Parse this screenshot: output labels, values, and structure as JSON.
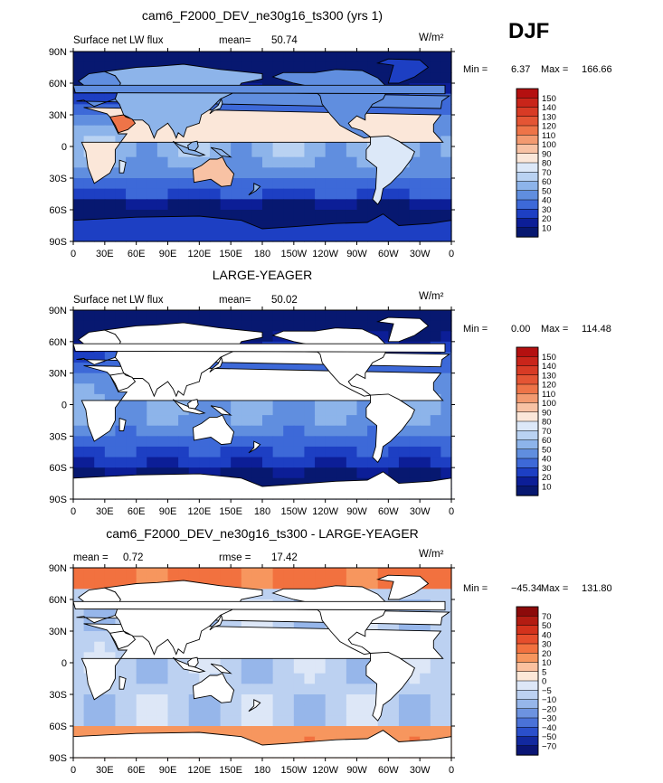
{
  "season": "DJF",
  "chart_data": [
    {
      "type": "heatmap",
      "title": "cam6_F2000_DEV_ne30g16_ts300 (yrs 1)",
      "left_label": "Surface net LW flux",
      "stat_label": "mean=",
      "stat_value": "50.74",
      "units": "W/m²",
      "min_label": "Min =",
      "min_value": "6.37",
      "max_label": "Max =",
      "max_value": "166.66",
      "colorbar_levels": [
        "150",
        "140",
        "130",
        "120",
        "110",
        "100",
        "90",
        "80",
        "70",
        "60",
        "50",
        "40",
        "30",
        "20",
        "10"
      ],
      "colorbar_colors": [
        "#B41010",
        "#C9251A",
        "#D83B25",
        "#E45534",
        "#EE7448",
        "#F39A70",
        "#F8C2A4",
        "#FBE7D9",
        "#DCE8F8",
        "#B9D2F2",
        "#8DB4EA",
        "#608EDF",
        "#3D69D8",
        "#1D3FC3",
        "#0C1E97",
        "#071870"
      ],
      "lat_ticks": [
        "90N",
        "60N",
        "30N",
        "0",
        "30S",
        "60S",
        "90S"
      ],
      "lon_ticks": [
        "0",
        "30E",
        "60E",
        "90E",
        "120E",
        "150E",
        "180",
        "150W",
        "120W",
        "90W",
        "60W",
        "30W",
        "0"
      ],
      "land_masked": false
    },
    {
      "type": "heatmap",
      "title": "LARGE-YEAGER",
      "left_label": "Surface net LW flux",
      "stat_label": "mean=",
      "stat_value": "50.02",
      "units": "W/m²",
      "min_label": "Min =",
      "min_value": "0.00",
      "max_label": "Max =",
      "max_value": "114.48",
      "colorbar_levels": [
        "150",
        "140",
        "130",
        "120",
        "110",
        "100",
        "90",
        "80",
        "70",
        "60",
        "50",
        "40",
        "30",
        "20",
        "10"
      ],
      "colorbar_colors": [
        "#B41010",
        "#C9251A",
        "#D83B25",
        "#E45534",
        "#EE7448",
        "#F39A70",
        "#F8C2A4",
        "#FBE7D9",
        "#DCE8F8",
        "#B9D2F2",
        "#8DB4EA",
        "#608EDF",
        "#3D69D8",
        "#1D3FC3",
        "#0C1E97",
        "#071870"
      ],
      "lat_ticks": [
        "90N",
        "60N",
        "30N",
        "0",
        "30S",
        "60S",
        "90S"
      ],
      "lon_ticks": [
        "0",
        "30E",
        "60E",
        "90E",
        "120E",
        "150E",
        "180",
        "150W",
        "120W",
        "90W",
        "60W",
        "30W",
        "0"
      ],
      "land_masked": true
    },
    {
      "type": "heatmap",
      "title": "cam6_F2000_DEV_ne30g16_ts300 - LARGE-YEAGER",
      "left_label": "mean =",
      "left_value": "0.72",
      "stat_label": "rmse =",
      "stat_value": "17.42",
      "units": "W/m²",
      "min_label": "Min =",
      "min_value": "−45.34",
      "max_label": "Max =",
      "max_value": "131.80",
      "colorbar_levels": [
        "70",
        "50",
        "40",
        "30",
        "20",
        "10",
        "5",
        "0",
        "−5",
        "−10",
        "−20",
        "−30",
        "−40",
        "−50",
        "−70"
      ],
      "colorbar_colors": [
        "#8C0A0A",
        "#B31C12",
        "#D3321C",
        "#E64E2C",
        "#F2713F",
        "#F7965E",
        "#FBC19F",
        "#FDE8D8",
        "#DDE7F7",
        "#BCD1F1",
        "#96B6EA",
        "#6D93E0",
        "#4A72D8",
        "#2A4FCB",
        "#12299F",
        "#0A1575"
      ],
      "lat_ticks": [
        "90N",
        "60N",
        "30N",
        "0",
        "30S",
        "60S",
        "90S"
      ],
      "lon_ticks": [
        "0",
        "30E",
        "60E",
        "90E",
        "120E",
        "150E",
        "180",
        "150W",
        "120W",
        "90W",
        "60W",
        "30W",
        "0"
      ],
      "land_masked": true
    }
  ]
}
